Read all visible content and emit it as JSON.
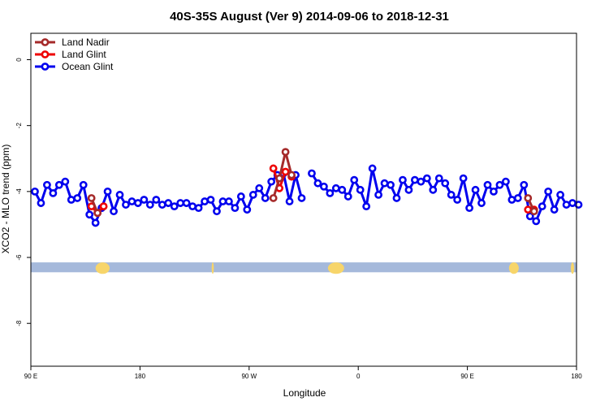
{
  "chart_data": {
    "type": "line",
    "title": "40S-35S August (Ver 9)   2014-09-06 to 2018-12-31",
    "xlabel": "Longitude",
    "ylabel": "XCO2 - MLO trend (ppm)",
    "xlim": [
      0,
      540
    ],
    "ylim": [
      -9.3,
      0.8
    ],
    "x_ticks": [
      {
        "value": 0,
        "label": "90 E"
      },
      {
        "value": 108,
        "label": "180"
      },
      {
        "value": 216,
        "label": "90 W"
      },
      {
        "value": 324,
        "label": "0"
      },
      {
        "value": 432,
        "label": "90 E"
      },
      {
        "value": 540,
        "label": "180"
      }
    ],
    "y_ticks": [
      0,
      -2,
      -4,
      -6,
      -8
    ],
    "grid": false,
    "legend_position": "top-left",
    "land_band": {
      "y_top": -6.15,
      "y_bottom": -6.45,
      "ocean_color": "#a5b9db",
      "land_color": "#f7d56a"
    },
    "series": [
      {
        "name": "Land Nadir",
        "color": "#a52a2a",
        "segments": [
          [
            [
              60,
              -4.2
            ],
            [
              66,
              -4.65
            ]
          ],
          [
            [
              240,
              -4.2
            ],
            [
              246,
              -3.6
            ],
            [
              252,
              -2.8
            ],
            [
              258,
              -3.5
            ]
          ],
          [
            [
              492,
              -4.2
            ],
            [
              498,
              -4.6
            ]
          ]
        ]
      },
      {
        "name": "Land Glint",
        "color": "#ee0000",
        "segments": [
          [
            [
              60,
              -4.45
            ],
            [
              66,
              -4.65
            ],
            [
              72,
              -4.45
            ]
          ],
          [
            [
              240,
              -3.3
            ],
            [
              246,
              -3.9
            ],
            [
              252,
              -3.4
            ],
            [
              258,
              -3.55
            ]
          ],
          [
            [
              492,
              -4.55
            ],
            [
              498,
              -4.55
            ]
          ]
        ]
      },
      {
        "name": "Ocean Glint",
        "color": "#0000ee",
        "segments": [
          [
            [
              4,
              -4.0
            ],
            [
              10,
              -4.35
            ],
            [
              16,
              -3.8
            ],
            [
              22,
              -4.05
            ],
            [
              28,
              -3.8
            ],
            [
              34,
              -3.7
            ],
            [
              40,
              -4.25
            ],
            [
              46,
              -4.2
            ],
            [
              52,
              -3.8
            ],
            [
              58,
              -4.7
            ],
            [
              64,
              -4.95
            ],
            [
              70,
              -4.5
            ],
            [
              76,
              -4.0
            ],
            [
              82,
              -4.6
            ],
            [
              88,
              -4.1
            ],
            [
              94,
              -4.4
            ],
            [
              100,
              -4.3
            ],
            [
              106,
              -4.35
            ],
            [
              112,
              -4.25
            ],
            [
              118,
              -4.4
            ],
            [
              124,
              -4.25
            ],
            [
              130,
              -4.4
            ],
            [
              136,
              -4.35
            ],
            [
              142,
              -4.45
            ],
            [
              148,
              -4.35
            ],
            [
              154,
              -4.35
            ],
            [
              160,
              -4.45
            ],
            [
              166,
              -4.5
            ],
            [
              172,
              -4.3
            ],
            [
              178,
              -4.25
            ],
            [
              184,
              -4.6
            ],
            [
              190,
              -4.3
            ],
            [
              196,
              -4.3
            ],
            [
              202,
              -4.5
            ],
            [
              208,
              -4.15
            ],
            [
              214,
              -4.55
            ],
            [
              220,
              -4.1
            ],
            [
              226,
              -3.9
            ],
            [
              232,
              -4.2
            ],
            [
              238,
              -3.7
            ],
            [
              244,
              -3.5
            ],
            [
              250,
              -3.45
            ],
            [
              256,
              -4.3
            ],
            [
              262,
              -3.5
            ],
            [
              268,
              -4.2
            ]
          ],
          [
            [
              278,
              -3.45
            ],
            [
              284,
              -3.75
            ],
            [
              290,
              -3.85
            ],
            [
              296,
              -4.05
            ],
            [
              302,
              -3.9
            ],
            [
              308,
              -3.95
            ],
            [
              314,
              -4.15
            ],
            [
              320,
              -3.65
            ],
            [
              326,
              -3.95
            ],
            [
              332,
              -4.45
            ],
            [
              338,
              -3.3
            ],
            [
              344,
              -4.1
            ],
            [
              350,
              -3.75
            ],
            [
              356,
              -3.8
            ],
            [
              362,
              -4.2
            ],
            [
              368,
              -3.65
            ],
            [
              374,
              -3.95
            ],
            [
              380,
              -3.65
            ],
            [
              386,
              -3.7
            ],
            [
              392,
              -3.6
            ],
            [
              398,
              -3.95
            ],
            [
              404,
              -3.6
            ],
            [
              410,
              -3.75
            ],
            [
              416,
              -4.1
            ],
            [
              422,
              -4.25
            ],
            [
              428,
              -3.6
            ],
            [
              434,
              -4.5
            ],
            [
              440,
              -3.95
            ],
            [
              446,
              -4.35
            ],
            [
              452,
              -3.8
            ],
            [
              458,
              -4.0
            ],
            [
              464,
              -3.8
            ],
            [
              470,
              -3.7
            ],
            [
              476,
              -4.25
            ],
            [
              482,
              -4.2
            ],
            [
              488,
              -3.8
            ],
            [
              494,
              -4.75
            ],
            [
              500,
              -4.9
            ],
            [
              506,
              -4.45
            ],
            [
              512,
              -4.0
            ],
            [
              518,
              -4.55
            ],
            [
              524,
              -4.1
            ],
            [
              530,
              -4.4
            ],
            [
              536,
              -4.35
            ],
            [
              542,
              -4.4
            ]
          ]
        ]
      }
    ]
  }
}
